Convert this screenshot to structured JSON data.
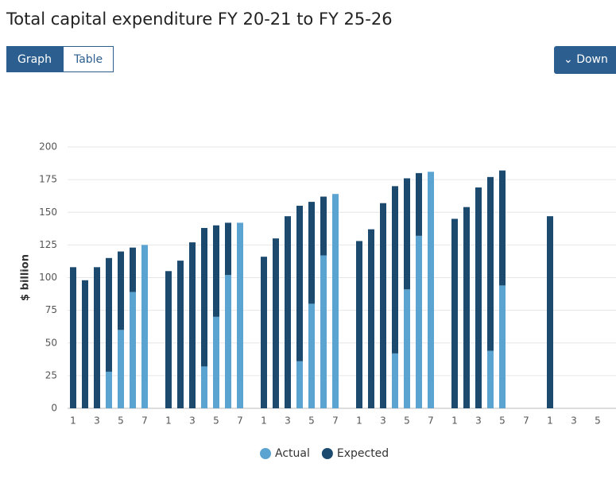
{
  "header": {
    "title": "Total capital expenditure FY 20-21 to FY 25-26",
    "tabs": [
      "Graph",
      "Table"
    ],
    "download": "Down"
  },
  "chart_data": {
    "type": "bar",
    "stacked": true,
    "y_label": "$ billion",
    "ylim": [
      0,
      200
    ],
    "yticks": [
      0,
      25,
      50,
      75,
      100,
      125,
      150,
      175,
      200
    ],
    "grid": true,
    "categories": [
      "1",
      null,
      "3",
      null,
      "5",
      null,
      "7",
      null,
      "1",
      null,
      "3",
      null,
      "5",
      null,
      "7",
      null,
      "1",
      null,
      "3",
      null,
      "5",
      null,
      "7",
      null,
      "1",
      null,
      "3",
      null,
      "5",
      null,
      "7",
      null,
      "1",
      null,
      "3",
      null,
      "5",
      null,
      "7",
      null,
      "1",
      null,
      "3",
      null,
      "5",
      null
    ],
    "legend": "bottom",
    "series": [
      {
        "name": "Actual",
        "color": "#5ba3d0",
        "values": [
          null,
          null,
          null,
          28,
          60,
          89,
          125,
          null,
          null,
          null,
          null,
          32,
          70,
          102,
          142,
          null,
          null,
          null,
          null,
          36,
          80,
          117,
          164,
          null,
          null,
          null,
          null,
          42,
          91,
          132,
          181,
          null,
          null,
          null,
          null,
          44,
          94,
          null,
          null,
          null,
          null,
          null,
          null,
          null,
          null,
          null
        ]
      },
      {
        "name": "Expected",
        "color": "#1c4a6e",
        "values": [
          108,
          98,
          108,
          87,
          60,
          34,
          null,
          null,
          105,
          113,
          127,
          106,
          70,
          40,
          null,
          null,
          116,
          130,
          147,
          119,
          78,
          45,
          null,
          null,
          128,
          137,
          157,
          128,
          85,
          48,
          null,
          null,
          145,
          154,
          169,
          133,
          88,
          null,
          null,
          null,
          147,
          null,
          null,
          null,
          null,
          null
        ]
      }
    ]
  }
}
